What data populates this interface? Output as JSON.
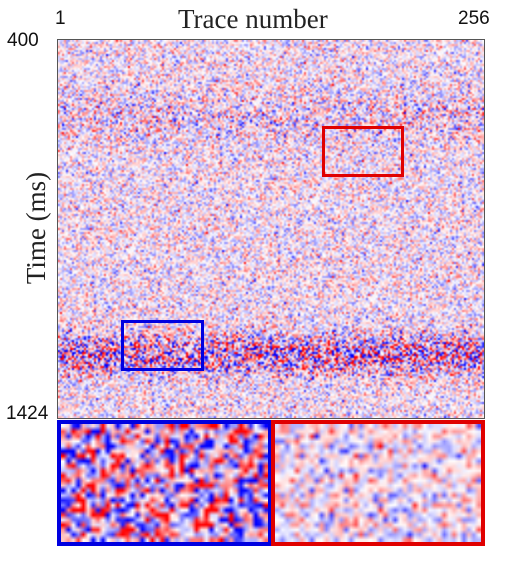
{
  "figure": {
    "title": "Trace number",
    "y_label": "Time (ms)",
    "x_ticks": [
      "1",
      "256"
    ],
    "y_ticks": [
      "400",
      "1424"
    ],
    "colormap": {
      "negative": "#0000ff",
      "zero": "#ffffff",
      "positive": "#ff0000"
    },
    "highlight_colors": {
      "red": "#e00000",
      "blue": "#0000e0"
    }
  }
}
